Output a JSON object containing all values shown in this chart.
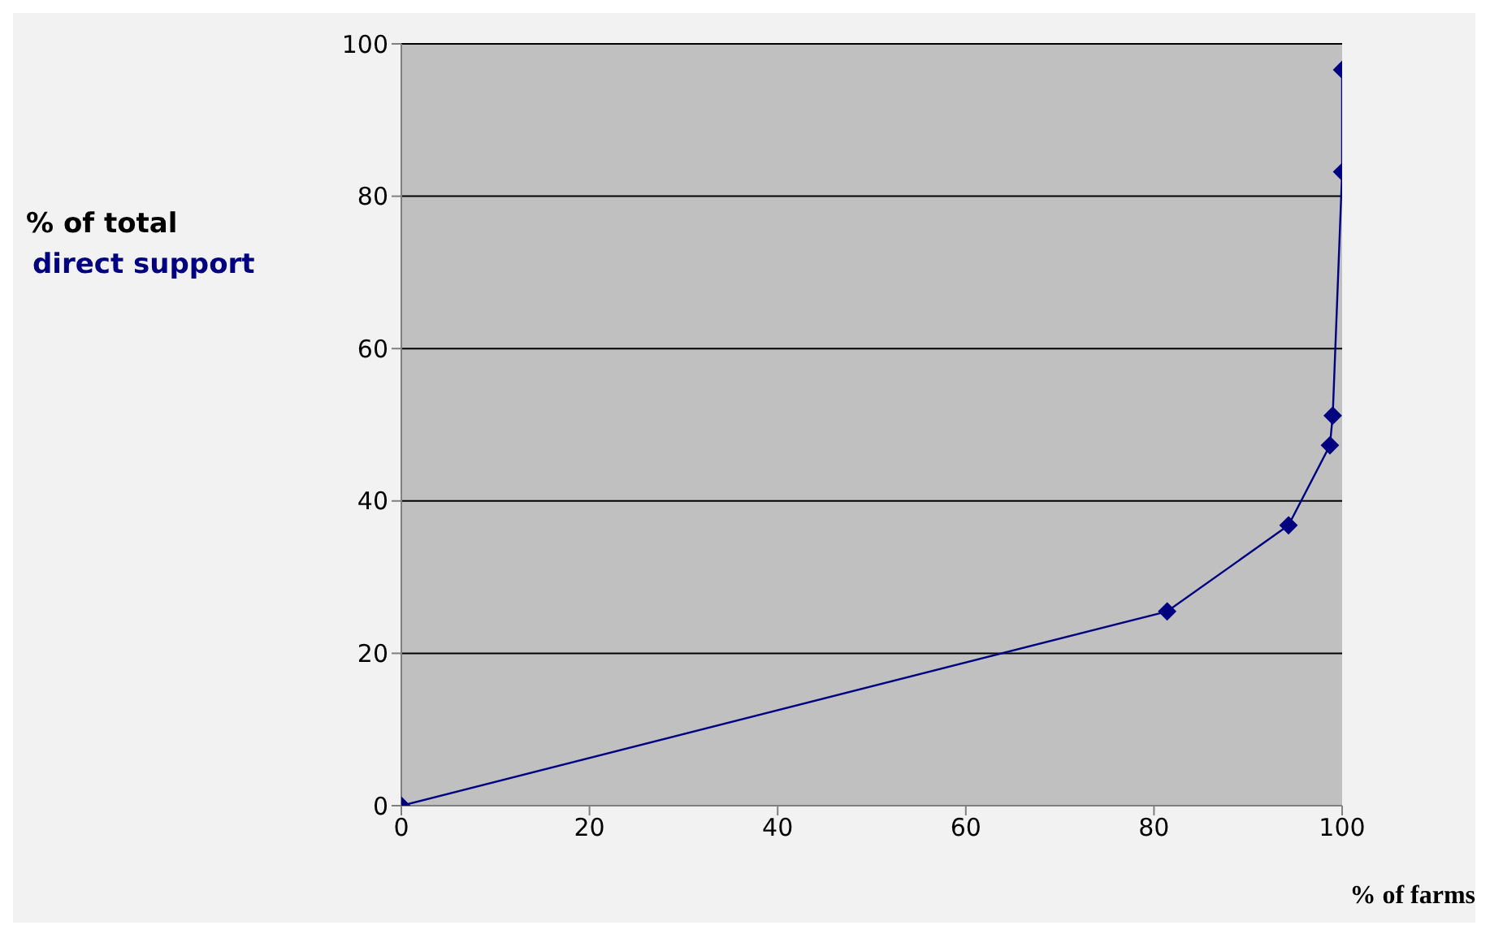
{
  "chart_data": {
    "type": "line",
    "xlabel": "% of farms",
    "ylabel": "% of total\ndirect support",
    "x": [
      0,
      81.4,
      94.3,
      98.7,
      99.0,
      100,
      100
    ],
    "series": [
      {
        "color": "#000080",
        "values": [
          0,
          25.5,
          36.8,
          47.3,
          51.2,
          83.2,
          96.6
        ]
      }
    ],
    "xlim": [
      0,
      100
    ],
    "xticks": [
      0,
      20,
      40,
      60,
      80,
      100
    ],
    "ylim": [
      0,
      100
    ],
    "yticks": [
      0,
      20,
      40,
      60,
      80,
      100
    ],
    "grid": "y",
    "marker": "diamond",
    "line_style": "solid"
  }
}
